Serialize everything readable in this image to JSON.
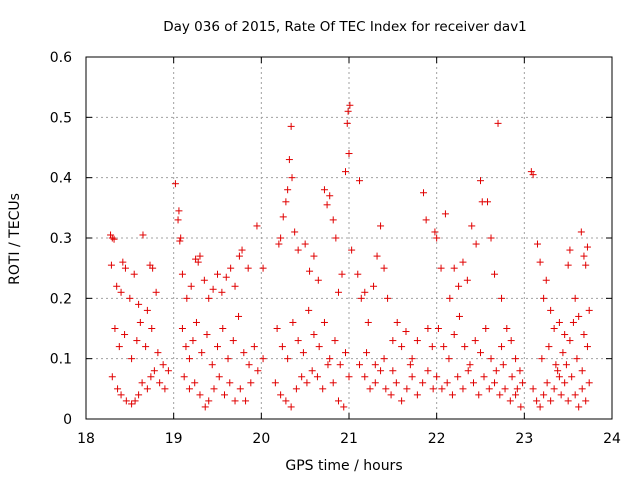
{
  "chart_data": {
    "type": "scatter",
    "title": "Day 036 of 2015, Rate Of TEC Index for receiver dav1",
    "xlabel": "GPS time / hours",
    "ylabel": "ROTI / TECUs",
    "xlim": [
      18,
      24
    ],
    "ylim": [
      0,
      0.6
    ],
    "xticks": [
      "18",
      "19",
      "20",
      "21",
      "22",
      "23",
      "24"
    ],
    "yticks": [
      "0",
      "0.1",
      "0.2",
      "0.3",
      "0.4",
      "0.5",
      "0.6"
    ],
    "grid": true,
    "marker": "+",
    "color": "#e00000",
    "series": [
      {
        "name": "ROTI",
        "points": [
          [
            18.28,
            0.305
          ],
          [
            18.3,
            0.3
          ],
          [
            18.32,
            0.298
          ],
          [
            18.29,
            0.255
          ],
          [
            18.35,
            0.22
          ],
          [
            18.4,
            0.21
          ],
          [
            18.42,
            0.26
          ],
          [
            18.45,
            0.25
          ],
          [
            18.5,
            0.2
          ],
          [
            18.55,
            0.24
          ],
          [
            18.6,
            0.19
          ],
          [
            18.65,
            0.305
          ],
          [
            18.7,
            0.18
          ],
          [
            18.73,
            0.255
          ],
          [
            18.76,
            0.25
          ],
          [
            18.8,
            0.21
          ],
          [
            18.33,
            0.15
          ],
          [
            18.38,
            0.12
          ],
          [
            18.44,
            0.14
          ],
          [
            18.52,
            0.1
          ],
          [
            18.58,
            0.13
          ],
          [
            18.62,
            0.16
          ],
          [
            18.68,
            0.12
          ],
          [
            18.75,
            0.15
          ],
          [
            18.82,
            0.11
          ],
          [
            18.88,
            0.09
          ],
          [
            18.3,
            0.07
          ],
          [
            18.36,
            0.05
          ],
          [
            18.4,
            0.04
          ],
          [
            18.46,
            0.03
          ],
          [
            18.52,
            0.025
          ],
          [
            18.56,
            0.03
          ],
          [
            18.6,
            0.04
          ],
          [
            18.64,
            0.06
          ],
          [
            18.7,
            0.05
          ],
          [
            18.74,
            0.07
          ],
          [
            18.78,
            0.08
          ],
          [
            18.84,
            0.06
          ],
          [
            18.9,
            0.05
          ],
          [
            18.94,
            0.08
          ],
          [
            19.02,
            0.39
          ],
          [
            19.06,
            0.345
          ],
          [
            19.05,
            0.33
          ],
          [
            19.08,
            0.3
          ],
          [
            19.07,
            0.295
          ],
          [
            19.1,
            0.24
          ],
          [
            19.15,
            0.2
          ],
          [
            19.2,
            0.22
          ],
          [
            19.25,
            0.265
          ],
          [
            19.28,
            0.26
          ],
          [
            19.3,
            0.27
          ],
          [
            19.35,
            0.23
          ],
          [
            19.4,
            0.2
          ],
          [
            19.45,
            0.215
          ],
          [
            19.5,
            0.24
          ],
          [
            19.55,
            0.21
          ],
          [
            19.6,
            0.235
          ],
          [
            19.65,
            0.25
          ],
          [
            19.7,
            0.22
          ],
          [
            19.75,
            0.27
          ],
          [
            19.78,
            0.28
          ],
          [
            19.85,
            0.25
          ],
          [
            19.95,
            0.32
          ],
          [
            20.02,
            0.25
          ],
          [
            19.1,
            0.15
          ],
          [
            19.14,
            0.12
          ],
          [
            19.18,
            0.1
          ],
          [
            19.22,
            0.13
          ],
          [
            19.26,
            0.16
          ],
          [
            19.32,
            0.11
          ],
          [
            19.38,
            0.14
          ],
          [
            19.44,
            0.09
          ],
          [
            19.5,
            0.12
          ],
          [
            19.56,
            0.15
          ],
          [
            19.62,
            0.1
          ],
          [
            19.68,
            0.13
          ],
          [
            19.74,
            0.17
          ],
          [
            19.8,
            0.11
          ],
          [
            19.86,
            0.09
          ],
          [
            19.92,
            0.12
          ],
          [
            19.12,
            0.07
          ],
          [
            19.18,
            0.05
          ],
          [
            19.24,
            0.06
          ],
          [
            19.3,
            0.04
          ],
          [
            19.36,
            0.02
          ],
          [
            19.4,
            0.03
          ],
          [
            19.46,
            0.05
          ],
          [
            19.52,
            0.07
          ],
          [
            19.58,
            0.04
          ],
          [
            19.64,
            0.06
          ],
          [
            19.7,
            0.03
          ],
          [
            19.76,
            0.05
          ],
          [
            19.82,
            0.03
          ],
          [
            19.88,
            0.06
          ],
          [
            19.96,
            0.08
          ],
          [
            20.02,
            0.1
          ],
          [
            20.2,
            0.29
          ],
          [
            20.22,
            0.3
          ],
          [
            20.25,
            0.335
          ],
          [
            20.28,
            0.36
          ],
          [
            20.3,
            0.38
          ],
          [
            20.32,
            0.43
          ],
          [
            20.34,
            0.485
          ],
          [
            20.35,
            0.4
          ],
          [
            20.38,
            0.31
          ],
          [
            20.42,
            0.28
          ],
          [
            20.5,
            0.29
          ],
          [
            20.55,
            0.245
          ],
          [
            20.6,
            0.27
          ],
          [
            20.65,
            0.23
          ],
          [
            20.72,
            0.38
          ],
          [
            20.75,
            0.355
          ],
          [
            20.78,
            0.37
          ],
          [
            20.82,
            0.33
          ],
          [
            20.85,
            0.3
          ],
          [
            20.88,
            0.21
          ],
          [
            20.92,
            0.24
          ],
          [
            20.96,
            0.41
          ],
          [
            20.98,
            0.49
          ],
          [
            21.0,
            0.44
          ],
          [
            20.99,
            0.51
          ],
          [
            21.01,
            0.52
          ],
          [
            21.03,
            0.28
          ],
          [
            20.18,
            0.15
          ],
          [
            20.24,
            0.12
          ],
          [
            20.3,
            0.1
          ],
          [
            20.36,
            0.16
          ],
          [
            20.42,
            0.13
          ],
          [
            20.48,
            0.11
          ],
          [
            20.54,
            0.18
          ],
          [
            20.6,
            0.14
          ],
          [
            20.66,
            0.12
          ],
          [
            20.72,
            0.16
          ],
          [
            20.78,
            0.1
          ],
          [
            20.84,
            0.13
          ],
          [
            20.9,
            0.09
          ],
          [
            20.96,
            0.11
          ],
          [
            20.16,
            0.06
          ],
          [
            20.22,
            0.04
          ],
          [
            20.28,
            0.03
          ],
          [
            20.34,
            0.02
          ],
          [
            20.4,
            0.05
          ],
          [
            20.46,
            0.07
          ],
          [
            20.52,
            0.06
          ],
          [
            20.58,
            0.08
          ],
          [
            20.64,
            0.07
          ],
          [
            20.7,
            0.05
          ],
          [
            20.76,
            0.09
          ],
          [
            20.82,
            0.06
          ],
          [
            20.88,
            0.03
          ],
          [
            20.94,
            0.02
          ],
          [
            21.0,
            0.07
          ],
          [
            21.12,
            0.395
          ],
          [
            21.1,
            0.24
          ],
          [
            21.14,
            0.2
          ],
          [
            21.18,
            0.21
          ],
          [
            21.22,
            0.16
          ],
          [
            21.28,
            0.22
          ],
          [
            21.32,
            0.27
          ],
          [
            21.36,
            0.32
          ],
          [
            21.4,
            0.25
          ],
          [
            21.44,
            0.2
          ],
          [
            21.5,
            0.13
          ],
          [
            21.55,
            0.16
          ],
          [
            21.6,
            0.12
          ],
          [
            21.65,
            0.145
          ],
          [
            21.72,
            0.1
          ],
          [
            21.78,
            0.13
          ],
          [
            21.85,
            0.375
          ],
          [
            21.88,
            0.33
          ],
          [
            21.9,
            0.15
          ],
          [
            21.95,
            0.12
          ],
          [
            21.12,
            0.09
          ],
          [
            21.18,
            0.07
          ],
          [
            21.24,
            0.05
          ],
          [
            21.3,
            0.06
          ],
          [
            21.36,
            0.08
          ],
          [
            21.42,
            0.05
          ],
          [
            21.48,
            0.04
          ],
          [
            21.54,
            0.06
          ],
          [
            21.6,
            0.03
          ],
          [
            21.66,
            0.05
          ],
          [
            21.72,
            0.07
          ],
          [
            21.78,
            0.04
          ],
          [
            21.84,
            0.06
          ],
          [
            21.9,
            0.08
          ],
          [
            21.96,
            0.05
          ],
          [
            21.2,
            0.11
          ],
          [
            21.3,
            0.09
          ],
          [
            21.4,
            0.1
          ],
          [
            21.5,
            0.08
          ],
          [
            21.7,
            0.09
          ],
          [
            21.98,
            0.31
          ],
          [
            22.0,
            0.3
          ],
          [
            22.05,
            0.25
          ],
          [
            22.1,
            0.34
          ],
          [
            22.15,
            0.2
          ],
          [
            22.2,
            0.25
          ],
          [
            22.25,
            0.22
          ],
          [
            22.3,
            0.26
          ],
          [
            22.35,
            0.23
          ],
          [
            22.4,
            0.32
          ],
          [
            22.45,
            0.29
          ],
          [
            22.5,
            0.395
          ],
          [
            22.52,
            0.36
          ],
          [
            22.58,
            0.36
          ],
          [
            22.62,
            0.3
          ],
          [
            22.66,
            0.24
          ],
          [
            22.7,
            0.49
          ],
          [
            22.74,
            0.2
          ],
          [
            22.8,
            0.15
          ],
          [
            22.85,
            0.13
          ],
          [
            22.9,
            0.1
          ],
          [
            22.95,
            0.08
          ],
          [
            22.02,
            0.15
          ],
          [
            22.08,
            0.12
          ],
          [
            22.14,
            0.1
          ],
          [
            22.2,
            0.14
          ],
          [
            22.26,
            0.17
          ],
          [
            22.32,
            0.12
          ],
          [
            22.38,
            0.09
          ],
          [
            22.44,
            0.13
          ],
          [
            22.5,
            0.11
          ],
          [
            22.56,
            0.15
          ],
          [
            22.62,
            0.1
          ],
          [
            22.68,
            0.08
          ],
          [
            22.74,
            0.12
          ],
          [
            22.0,
            0.07
          ],
          [
            22.06,
            0.05
          ],
          [
            22.12,
            0.06
          ],
          [
            22.18,
            0.04
          ],
          [
            22.24,
            0.07
          ],
          [
            22.3,
            0.05
          ],
          [
            22.36,
            0.08
          ],
          [
            22.42,
            0.06
          ],
          [
            22.48,
            0.04
          ],
          [
            22.54,
            0.07
          ],
          [
            22.6,
            0.05
          ],
          [
            22.66,
            0.06
          ],
          [
            22.72,
            0.04
          ],
          [
            22.78,
            0.05
          ],
          [
            22.84,
            0.03
          ],
          [
            22.9,
            0.04
          ],
          [
            22.96,
            0.02
          ],
          [
            22.98,
            0.06
          ],
          [
            22.92,
            0.05
          ],
          [
            22.86,
            0.07
          ],
          [
            22.76,
            0.09
          ],
          [
            23.08,
            0.41
          ],
          [
            23.1,
            0.405
          ],
          [
            23.15,
            0.29
          ],
          [
            23.18,
            0.26
          ],
          [
            23.22,
            0.2
          ],
          [
            23.25,
            0.23
          ],
          [
            23.3,
            0.18
          ],
          [
            23.4,
            0.16
          ],
          [
            23.5,
            0.255
          ],
          [
            23.52,
            0.28
          ],
          [
            23.58,
            0.2
          ],
          [
            23.62,
            0.17
          ],
          [
            23.65,
            0.31
          ],
          [
            23.68,
            0.27
          ],
          [
            23.7,
            0.255
          ],
          [
            23.72,
            0.285
          ],
          [
            23.74,
            0.18
          ],
          [
            23.1,
            0.05
          ],
          [
            23.14,
            0.03
          ],
          [
            23.18,
            0.02
          ],
          [
            23.22,
            0.04
          ],
          [
            23.26,
            0.06
          ],
          [
            23.3,
            0.03
          ],
          [
            23.34,
            0.05
          ],
          [
            23.38,
            0.08
          ],
          [
            23.42,
            0.04
          ],
          [
            23.46,
            0.06
          ],
          [
            23.5,
            0.03
          ],
          [
            23.54,
            0.07
          ],
          [
            23.58,
            0.04
          ],
          [
            23.62,
            0.02
          ],
          [
            23.66,
            0.05
          ],
          [
            23.7,
            0.03
          ],
          [
            23.74,
            0.06
          ],
          [
            23.2,
            0.1
          ],
          [
            23.28,
            0.12
          ],
          [
            23.36,
            0.09
          ],
          [
            23.44,
            0.11
          ],
          [
            23.52,
            0.13
          ],
          [
            23.6,
            0.1
          ],
          [
            23.68,
            0.14
          ],
          [
            23.72,
            0.12
          ],
          [
            23.34,
            0.15
          ],
          [
            23.46,
            0.14
          ],
          [
            23.56,
            0.16
          ],
          [
            23.66,
            0.08
          ],
          [
            23.48,
            0.09
          ],
          [
            23.4,
            0.07
          ]
        ]
      }
    ]
  }
}
